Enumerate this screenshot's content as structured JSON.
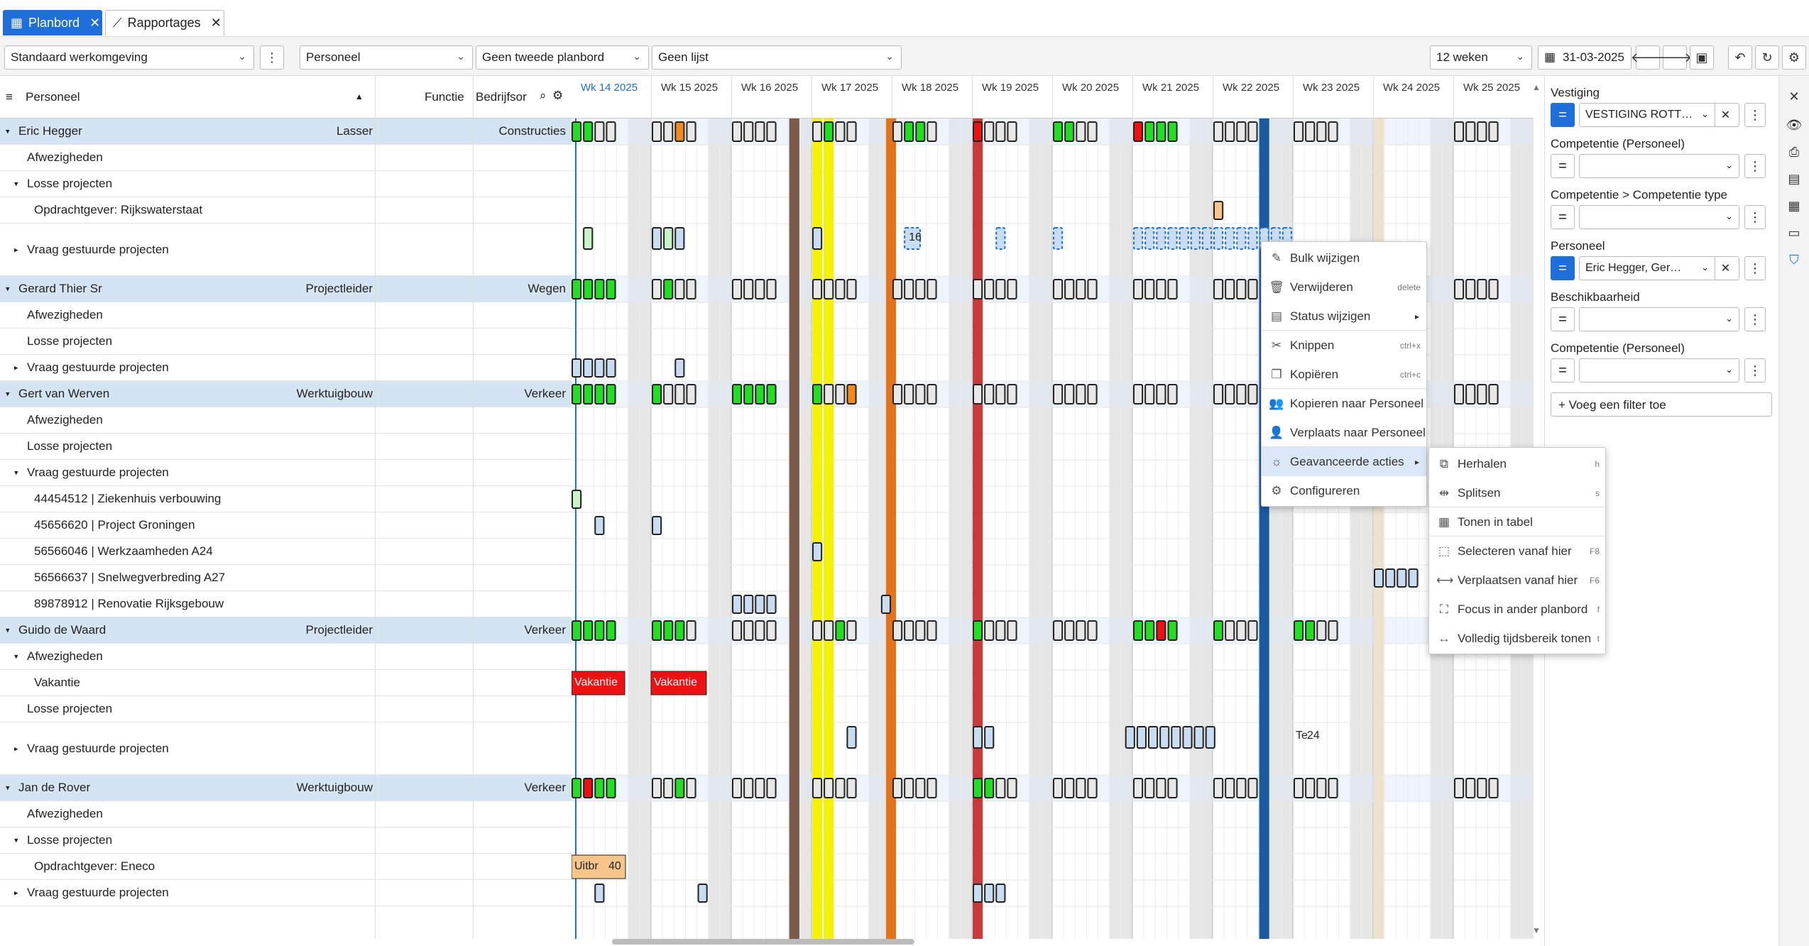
{
  "tabs": [
    {
      "label": "Planbord",
      "icon": "calendar-icon"
    },
    {
      "label": "Rapportages",
      "icon": "chart-line-icon"
    }
  ],
  "toolbar": {
    "workspace": "Standaard werkomgeving",
    "view1": "Personeel",
    "view2": "Geen tweede planbord",
    "view3": "Geen lijst",
    "range": "12 weken",
    "date": "31-03-2025"
  },
  "grid_header": {
    "col_name": "Personeel",
    "col_function": "Functie",
    "col_company": "Bedrijfsor"
  },
  "weeks": [
    "Wk 14 2025",
    "Wk 15 2025",
    "Wk 16 2025",
    "Wk 17 2025",
    "Wk 18 2025",
    "Wk 19 2025",
    "Wk 20 2025",
    "Wk 21 2025",
    "Wk 22 2025",
    "Wk 23 2025",
    "Wk 24 2025",
    "Wk 25 2025"
  ],
  "rows": [
    {
      "type": "person",
      "name": "Eric Hegger",
      "function": "Lasser",
      "company": "Constructies",
      "indent": 0,
      "caret": "▾"
    },
    {
      "type": "sub",
      "name": "Afwezigheden",
      "indent": 1,
      "caret": ""
    },
    {
      "type": "sub",
      "name": "Losse projecten",
      "indent": 1,
      "caret": "▾"
    },
    {
      "type": "sub",
      "name": "Opdrachtgever: Rijkswaterstaat",
      "indent": 2,
      "caret": ""
    },
    {
      "type": "sub",
      "name": "Vraag gestuurde projecten",
      "indent": 1,
      "caret": "▸",
      "tall": true
    },
    {
      "type": "person",
      "name": "Gerard Thier Sr",
      "function": "Projectleider",
      "company": "Wegen",
      "indent": 0,
      "caret": "▾"
    },
    {
      "type": "sub",
      "name": "Afwezigheden",
      "indent": 1,
      "caret": ""
    },
    {
      "type": "sub",
      "name": "Losse projecten",
      "indent": 1,
      "caret": ""
    },
    {
      "type": "sub",
      "name": "Vraag gestuurde projecten",
      "indent": 1,
      "caret": "▸"
    },
    {
      "type": "person",
      "name": "Gert van Werven",
      "function": "Werktuigbouw",
      "company": "Verkeer",
      "indent": 0,
      "caret": "▾"
    },
    {
      "type": "sub",
      "name": "Afwezigheden",
      "indent": 1,
      "caret": ""
    },
    {
      "type": "sub",
      "name": "Losse projecten",
      "indent": 1,
      "caret": ""
    },
    {
      "type": "sub",
      "name": "Vraag gestuurde projecten",
      "indent": 1,
      "caret": "▾"
    },
    {
      "type": "sub",
      "name": "44454512 |  Ziekenhuis verbouwing",
      "indent": 2,
      "caret": ""
    },
    {
      "type": "sub",
      "name": "45656620 |  Project Groningen",
      "indent": 2,
      "caret": ""
    },
    {
      "type": "sub",
      "name": "56566046 |  Werkzaamheden A24",
      "indent": 2,
      "caret": ""
    },
    {
      "type": "sub",
      "name": "56566637 |  Snelwegverbreding A27",
      "indent": 2,
      "caret": ""
    },
    {
      "type": "sub",
      "name": "89878912 |  Renovatie Rijksgebouw",
      "indent": 2,
      "caret": ""
    },
    {
      "type": "person",
      "name": "Guido de Waard",
      "function": "Projectleider",
      "company": "Verkeer",
      "indent": 0,
      "caret": "▾"
    },
    {
      "type": "sub",
      "name": "Afwezigheden",
      "indent": 1,
      "caret": "▾"
    },
    {
      "type": "sub",
      "name": "Vakantie",
      "indent": 2,
      "caret": ""
    },
    {
      "type": "sub",
      "name": "Losse projecten",
      "indent": 1,
      "caret": ""
    },
    {
      "type": "sub",
      "name": "Vraag gestuurde projecten",
      "indent": 1,
      "caret": "▸",
      "tall": true
    },
    {
      "type": "person",
      "name": "Jan de Rover",
      "function": "Werktuigbouw",
      "company": "Verkeer",
      "indent": 0,
      "caret": "▾"
    },
    {
      "type": "sub",
      "name": "Afwezigheden",
      "indent": 1,
      "caret": ""
    },
    {
      "type": "sub",
      "name": "Losse projecten",
      "indent": 1,
      "caret": "▾"
    },
    {
      "type": "sub",
      "name": "Opdrachtgever: Eneco",
      "indent": 2,
      "caret": ""
    },
    {
      "type": "sub",
      "name": "Vraag gestuurde projecten",
      "indent": 1,
      "caret": "▸"
    }
  ],
  "board_labels": {
    "vakantie1": "Vakantie",
    "vakantie2": "Vakantie",
    "uitbr": "Uitbr",
    "uitbr_num": "40",
    "num16": "16",
    "te24_a": "Te",
    "te24_b": "24"
  },
  "filters": [
    {
      "label": "Vestiging",
      "value": "VESTIGING ROTT…",
      "active": true,
      "clear": true
    },
    {
      "label": "Competentie (Personeel)",
      "value": "",
      "active": false,
      "clear": false
    },
    {
      "label": "Competentie > Competentie type",
      "value": "",
      "active": false,
      "clear": false
    },
    {
      "label": "Personeel",
      "value": "Eric Hegger, Ger…",
      "active": true,
      "clear": true
    },
    {
      "label": "Beschikbaarheid",
      "value": "",
      "active": false,
      "clear": false
    },
    {
      "label": "Competentie (Personeel)",
      "value": "",
      "active": false,
      "clear": false
    }
  ],
  "add_filter": "Voeg een filter toe",
  "context_menu": [
    {
      "label": "Bulk wijzigen",
      "icon": "pencil-icon",
      "shortcut": ""
    },
    {
      "label": "Verwijderen",
      "icon": "trash-icon",
      "shortcut": "delete"
    },
    {
      "label": "Status wijzigen",
      "icon": "status-icon",
      "shortcut": "",
      "submenu": true
    },
    {
      "label": "Knippen",
      "icon": "scissors-icon",
      "shortcut": "ctrl+x"
    },
    {
      "label": "Kopiëren",
      "icon": "copy-icon",
      "shortcut": "ctrl+c"
    },
    {
      "label": "Kopieren naar Personeel",
      "icon": "people-icon",
      "shortcut": ""
    },
    {
      "label": "Verplaats naar Personeel",
      "icon": "person-icon",
      "shortcut": ""
    },
    {
      "label": "Geavanceerde acties",
      "icon": "bulb-icon",
      "shortcut": "",
      "submenu": true,
      "highlight": true
    },
    {
      "label": "Configureren",
      "icon": "gear-icon",
      "shortcut": ""
    }
  ],
  "submenu": [
    {
      "label": "Herhalen",
      "icon": "repeat-icon",
      "shortcut": "h"
    },
    {
      "label": "Splitsen",
      "icon": "split-icon",
      "shortcut": "s"
    },
    {
      "label": "Tonen in tabel",
      "icon": "table-icon",
      "shortcut": ""
    },
    {
      "label": "Selecteren vanaf hier",
      "icon": "select-icon",
      "shortcut": "F8"
    },
    {
      "label": "Verplaatsen vanaf hier",
      "icon": "move-icon",
      "shortcut": "F6"
    },
    {
      "label": "Focus in ander planbord",
      "icon": "focus-icon",
      "shortcut": "f"
    },
    {
      "label": "Volledig tijdsbereik tonen",
      "icon": "expand-icon",
      "shortcut": "t"
    }
  ],
  "colors": {
    "accent": "#1e6fd9",
    "person_row": "#d5e4f3",
    "green": "#22dd22",
    "orange": "#f08a1c",
    "red": "#ee1111",
    "yellow": "#f5f20a",
    "brown": "#7a5a4a",
    "dark_orange": "#e2731a",
    "brick": "#c43c3c",
    "navy": "#1a5aa0",
    "beige": "#efe2cc",
    "light_blue": "#c9ddf2"
  }
}
